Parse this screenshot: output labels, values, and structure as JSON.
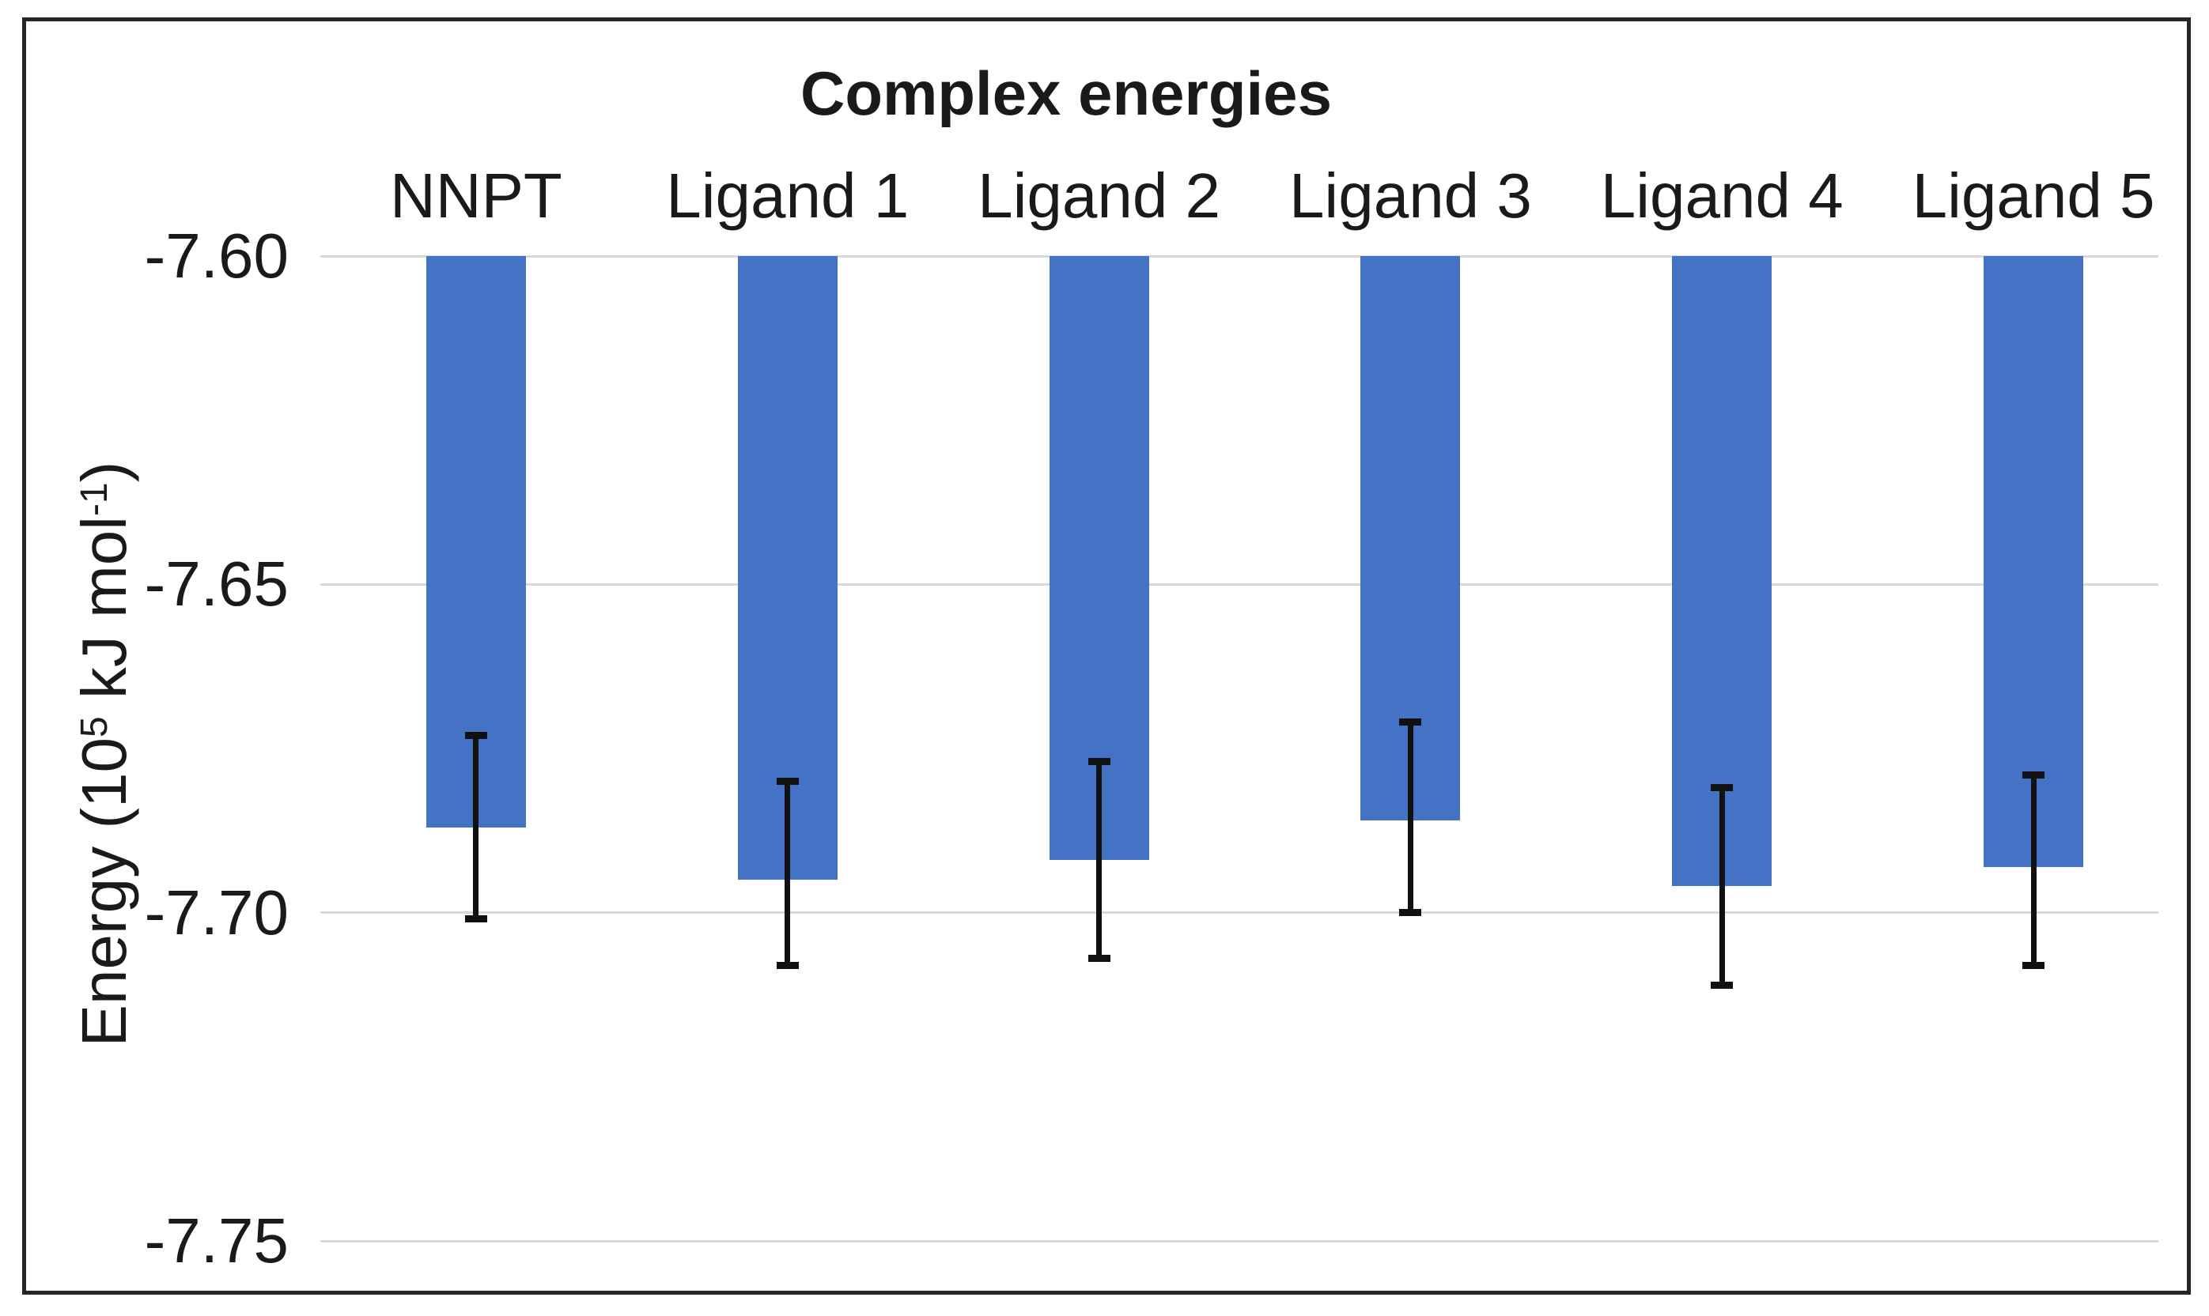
{
  "chart_data": {
    "type": "bar",
    "title": "Complex energies",
    "categories": [
      "NNPT",
      "Ligand 1",
      "Ligand 2",
      "Ligand 3",
      "Ligand 4",
      "Ligand 5"
    ],
    "values": [
      -7.687,
      -7.695,
      -7.692,
      -7.686,
      -7.696,
      -7.693
    ],
    "error_bars": {
      "top": [
        -7.673,
        -7.68,
        -7.677,
        -7.671,
        -7.681,
        -7.679
      ],
      "bottom": [
        -7.701,
        -7.708,
        -7.707,
        -7.7,
        -7.711,
        -7.708
      ]
    },
    "bar_baseline": -7.6,
    "ylabel": "Energy (10⁵ kJ mol⁻¹)",
    "ylabel_parts": [
      {
        "text": "Energy (10",
        "sup": false
      },
      {
        "text": "5",
        "sup": true
      },
      {
        "text": " kJ mol",
        "sup": false
      },
      {
        "text": "-1",
        "sup": true
      },
      {
        "text": ")",
        "sup": false
      }
    ],
    "xlabel": "",
    "ylim": [
      -7.75,
      -7.6
    ],
    "yticks": {
      "values": [
        -7.6,
        -7.65,
        -7.7,
        -7.75
      ],
      "labels": [
        "-7.60",
        "-7.65",
        "-7.70",
        "-7.75"
      ]
    },
    "grid": true,
    "legend": "none",
    "colors": {
      "bar": "#4472C4",
      "gridline": "#D9D9D9",
      "text": "#1A1A1A",
      "error_bar": "#111111",
      "figure_border": "#262626",
      "background": "#FFFFFF"
    }
  }
}
